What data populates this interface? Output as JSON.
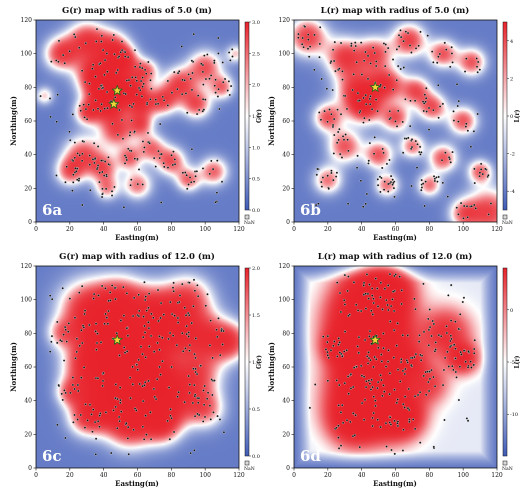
{
  "colors": {
    "low": "#3f5bb8",
    "mid": "#ffffff",
    "high": "#e8222b",
    "point": "#111111",
    "star": "#f2d33a"
  },
  "chart_data": [
    {
      "id": "6a",
      "type": "heatmap",
      "title": "G(r) map with radius of 5.0 (m)",
      "panel_label": "6a",
      "xlabel": "Easting(m)",
      "ylabel": "Northing(m)",
      "xlim": [
        0,
        120
      ],
      "ylim": [
        0,
        120
      ],
      "xticks": [
        "0",
        "20",
        "40",
        "60",
        "80",
        "100",
        "120"
      ],
      "yticks": [
        "0",
        "20",
        "40",
        "60",
        "80",
        "100",
        "120"
      ],
      "colorbar": {
        "label": "G(r)",
        "range": [
          0,
          3
        ],
        "ticks": [
          "0.0",
          "0.5",
          "1.0",
          "1.5",
          "2.0",
          "2.5",
          "3.0"
        ],
        "nan_label": "NaN"
      },
      "hotspots": [
        [
          15,
          100,
          7,
          0.9
        ],
        [
          30,
          108,
          8,
          0.9
        ],
        [
          45,
          104,
          7,
          0.8
        ],
        [
          52,
          96,
          6,
          0.9
        ],
        [
          65,
          90,
          5,
          0.7
        ],
        [
          35,
          88,
          8,
          0.95
        ],
        [
          44,
          80,
          9,
          1.0
        ],
        [
          58,
          80,
          6,
          0.7
        ],
        [
          42,
          70,
          8,
          0.9
        ],
        [
          62,
          70,
          6,
          0.8
        ],
        [
          30,
          65,
          5,
          0.7
        ],
        [
          75,
          72,
          6,
          0.8
        ],
        [
          85,
          82,
          7,
          0.85
        ],
        [
          95,
          70,
          6,
          0.8
        ],
        [
          100,
          92,
          7,
          0.8
        ],
        [
          110,
          80,
          5,
          0.7
        ],
        [
          48,
          54,
          7,
          0.8
        ],
        [
          62,
          58,
          5,
          0.7
        ],
        [
          28,
          40,
          8,
          0.8
        ],
        [
          40,
          32,
          6,
          0.7
        ],
        [
          55,
          38,
          5,
          0.7
        ],
        [
          68,
          44,
          6,
          0.7
        ],
        [
          80,
          36,
          6,
          0.8
        ],
        [
          90,
          25,
          5,
          0.7
        ],
        [
          105,
          30,
          6,
          0.75
        ],
        [
          20,
          30,
          6,
          0.7
        ],
        [
          42,
          20,
          5,
          0.6
        ],
        [
          60,
          22,
          6,
          0.7
        ],
        [
          118,
          100,
          4,
          0.5
        ],
        [
          5,
          75,
          4,
          0.5
        ]
      ],
      "stars": [
        [
          48,
          78
        ],
        [
          46,
          70
        ]
      ]
    },
    {
      "id": "6b",
      "type": "heatmap",
      "title": "L(r) map with radius of 5.0 (m)",
      "panel_label": "6b",
      "xlabel": "Easting(m)",
      "ylabel": "Northing(m)",
      "xlim": [
        0,
        120
      ],
      "ylim": [
        0,
        120
      ],
      "xticks": [
        "0",
        "20",
        "40",
        "60",
        "80",
        "100",
        "120"
      ],
      "yticks": [
        "0",
        "20",
        "40",
        "60",
        "80",
        "100",
        "120"
      ],
      "colorbar": {
        "label": "L(r)",
        "range": [
          -5,
          5
        ],
        "ticks": [
          "-4",
          "-2",
          "0",
          "2",
          "4"
        ],
        "nan_label": "NaN"
      },
      "hotspots": [
        [
          8,
          110,
          8,
          0.9
        ],
        [
          30,
          98,
          8,
          0.9
        ],
        [
          48,
          100,
          7,
          0.8
        ],
        [
          68,
          108,
          7,
          0.9
        ],
        [
          88,
          100,
          6,
          0.8
        ],
        [
          105,
          95,
          6,
          0.8
        ],
        [
          38,
          78,
          9,
          0.95
        ],
        [
          55,
          82,
          7,
          0.9
        ],
        [
          72,
          78,
          6,
          0.8
        ],
        [
          20,
          62,
          6,
          0.8
        ],
        [
          42,
          68,
          7,
          0.8
        ],
        [
          60,
          62,
          6,
          0.8
        ],
        [
          82,
          68,
          6,
          0.8
        ],
        [
          100,
          60,
          6,
          0.8
        ],
        [
          30,
          45,
          7,
          0.8
        ],
        [
          50,
          40,
          6,
          0.8
        ],
        [
          70,
          45,
          5,
          0.7
        ],
        [
          88,
          38,
          6,
          0.8
        ],
        [
          110,
          30,
          5,
          0.75
        ],
        [
          20,
          25,
          6,
          0.7
        ],
        [
          55,
          22,
          5,
          0.7
        ],
        [
          80,
          22,
          5,
          0.7
        ],
        [
          115,
          6,
          10,
          0.9
        ],
        [
          100,
          5,
          6,
          0.6
        ]
      ],
      "stars": [
        [
          48,
          80
        ]
      ]
    },
    {
      "id": "6c",
      "type": "heatmap",
      "title": "G(r) map with radius of 12.0 (m)",
      "panel_label": "6c",
      "xlabel": "Easting(m)",
      "ylabel": "Northing(m)",
      "xlim": [
        0,
        120
      ],
      "ylim": [
        0,
        120
      ],
      "xticks": [
        "0",
        "20",
        "40",
        "60",
        "80",
        "100",
        "120"
      ],
      "yticks": [
        "0",
        "20",
        "40",
        "60",
        "80",
        "100",
        "120"
      ],
      "colorbar": {
        "label": "G(r)",
        "range": [
          0,
          2
        ],
        "ticks": [
          "0.0",
          "0.5",
          "1.0",
          "1.5",
          "2.0"
        ],
        "nan_label": "NaN"
      },
      "hotspots": [
        [
          30,
          95,
          12,
          0.9
        ],
        [
          50,
          100,
          10,
          0.85
        ],
        [
          70,
          95,
          10,
          0.8
        ],
        [
          90,
          100,
          10,
          0.85
        ],
        [
          40,
          78,
          12,
          1.0
        ],
        [
          60,
          75,
          12,
          0.9
        ],
        [
          80,
          80,
          10,
          0.85
        ],
        [
          100,
          78,
          10,
          0.85
        ],
        [
          115,
          75,
          8,
          0.8
        ],
        [
          30,
          60,
          10,
          0.85
        ],
        [
          50,
          58,
          12,
          0.9
        ],
        [
          70,
          55,
          10,
          0.85
        ],
        [
          95,
          55,
          10,
          0.8
        ],
        [
          40,
          40,
          10,
          0.9
        ],
        [
          60,
          42,
          12,
          0.95
        ],
        [
          80,
          40,
          10,
          0.85
        ],
        [
          100,
          35,
          8,
          0.7
        ],
        [
          30,
          30,
          8,
          0.75
        ],
        [
          55,
          25,
          10,
          0.85
        ],
        [
          75,
          25,
          8,
          0.75
        ],
        [
          20,
          45,
          6,
          0.6
        ],
        [
          15,
          80,
          6,
          0.5
        ]
      ],
      "stars": [
        [
          48,
          76
        ]
      ]
    },
    {
      "id": "6d",
      "type": "heatmap",
      "title": "L(r) map with radius of 12.0 (m)",
      "panel_label": "6d",
      "xlabel": "Easting(m)",
      "ylabel": "Northing(m)",
      "xlim": [
        0,
        120
      ],
      "ylim": [
        0,
        120
      ],
      "xticks": [
        "0",
        "20",
        "40",
        "60",
        "80",
        "100",
        "120"
      ],
      "yticks": [
        "0",
        "20",
        "40",
        "60",
        "80",
        "100",
        "120"
      ],
      "colorbar": {
        "label": "L(r)",
        "range": [
          -14,
          4
        ],
        "ticks": [
          "0",
          "-5",
          "-10"
        ],
        "nan_label": "NaN"
      },
      "hotspots": [
        [
          45,
          100,
          14,
          0.95
        ],
        [
          55,
          105,
          10,
          0.85
        ],
        [
          40,
          82,
          14,
          1.0
        ],
        [
          50,
          72,
          14,
          1.0
        ],
        [
          45,
          58,
          12,
          0.9
        ],
        [
          40,
          42,
          14,
          0.95
        ],
        [
          55,
          35,
          12,
          0.9
        ],
        [
          35,
          28,
          10,
          0.8
        ],
        [
          65,
          30,
          8,
          0.7
        ],
        [
          90,
          80,
          10,
          0.7
        ],
        [
          100,
          65,
          6,
          0.8
        ],
        [
          80,
          50,
          8,
          0.5
        ],
        [
          25,
          72,
          6,
          0.5
        ],
        [
          70,
          62,
          6,
          0.4
        ]
      ],
      "stars": [
        [
          48,
          76
        ]
      ]
    }
  ]
}
